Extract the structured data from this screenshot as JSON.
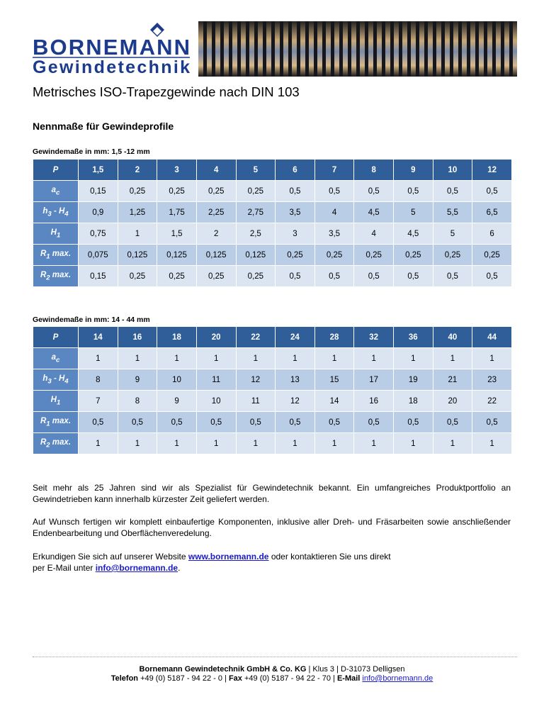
{
  "logo": {
    "name": "BORNEMANN",
    "tagline": "Gewindetechnik"
  },
  "title": "Metrisches ISO-Trapezgewinde nach DIN 103",
  "subtitle": "Nennmaße für Gewindeprofile",
  "tables": [
    {
      "caption": "Gewindemaße in mm: 1,5 -12 mm",
      "header": [
        "P",
        "1,5",
        "2",
        "3",
        "4",
        "5",
        "6",
        "7",
        "8",
        "9",
        "10",
        "12"
      ],
      "rows": [
        {
          "label": [
            "a",
            "c"
          ],
          "cells": [
            "0,15",
            "0,25",
            "0,25",
            "0,25",
            "0,25",
            "0,5",
            "0,5",
            "0,5",
            "0,5",
            "0,5",
            "0,5"
          ]
        },
        {
          "label": [
            "h",
            "3",
            " - H",
            "4"
          ],
          "cells": [
            "0,9",
            "1,25",
            "1,75",
            "2,25",
            "2,75",
            "3,5",
            "4",
            "4,5",
            "5",
            "5,5",
            "6,5"
          ]
        },
        {
          "label": [
            "H",
            "1"
          ],
          "cells": [
            "0,75",
            "1",
            "1,5",
            "2",
            "2,5",
            "3",
            "3,5",
            "4",
            "4,5",
            "5",
            "6"
          ]
        },
        {
          "label": [
            "R",
            "1",
            " max."
          ],
          "cells": [
            "0,075",
            "0,125",
            "0,125",
            "0,125",
            "0,125",
            "0,25",
            "0,25",
            "0,25",
            "0,25",
            "0,25",
            "0,25"
          ]
        },
        {
          "label": [
            "R",
            "2",
            " max."
          ],
          "cells": [
            "0,15",
            "0,25",
            "0,25",
            "0,25",
            "0,25",
            "0,5",
            "0,5",
            "0,5",
            "0,5",
            "0,5",
            "0,5"
          ]
        }
      ]
    },
    {
      "caption": "Gewindemaße in mm: 14 - 44 mm",
      "header": [
        "P",
        "14",
        "16",
        "18",
        "20",
        "22",
        "24",
        "28",
        "32",
        "36",
        "40",
        "44"
      ],
      "rows": [
        {
          "label": [
            "a",
            "c"
          ],
          "cells": [
            "1",
            "1",
            "1",
            "1",
            "1",
            "1",
            "1",
            "1",
            "1",
            "1",
            "1"
          ]
        },
        {
          "label": [
            "h",
            "3",
            " - H",
            "4"
          ],
          "cells": [
            "8",
            "9",
            "10",
            "11",
            "12",
            "13",
            "15",
            "17",
            "19",
            "21",
            "23"
          ]
        },
        {
          "label": [
            "H",
            "1"
          ],
          "cells": [
            "7",
            "8",
            "9",
            "10",
            "11",
            "12",
            "14",
            "16",
            "18",
            "20",
            "22"
          ]
        },
        {
          "label": [
            "R",
            "1",
            " max."
          ],
          "cells": [
            "0,5",
            "0,5",
            "0,5",
            "0,5",
            "0,5",
            "0,5",
            "0,5",
            "0,5",
            "0,5",
            "0,5",
            "0,5"
          ]
        },
        {
          "label": [
            "R",
            "2",
            " max."
          ],
          "cells": [
            "1",
            "1",
            "1",
            "1",
            "1",
            "1",
            "1",
            "1",
            "1",
            "1",
            "1"
          ]
        }
      ]
    }
  ],
  "paragraphs": [
    "Seit mehr als 25 Jahren sind wir als Spezialist für Gewindetechnik bekannt. Ein umfangreiches Produktportfolio an Gewindetrieben kann innerhalb kürzester Zeit geliefert werden.",
    "Auf Wunsch fertigen wir komplett einbaufertige Komponenten, inklusive aller Dreh- und Fräsarbeiten sowie anschließender Endenbearbeitung und Oberflächenveredelung."
  ],
  "contact": {
    "line1": [
      "Erkundigen Sie sich auf unserer Website ",
      "www.bornemann.de",
      " oder kontaktieren Sie uns direkt"
    ],
    "line2": [
      "per E-Mail unter ",
      "info@bornemann.de",
      "."
    ]
  },
  "footer": {
    "line1": [
      "Bornemann Gewindetechnik GmbH & Co. KG",
      " | Klus 3 | D-31073 Delligsen"
    ],
    "line2": [
      "Telefon",
      " +49 (0) 5187 - 94 22 - 0 | ",
      "Fax",
      " +49 (0) 5187 - 94 22 - 70 | ",
      "E-Mail",
      " ",
      "info@bornemann.de"
    ]
  }
}
